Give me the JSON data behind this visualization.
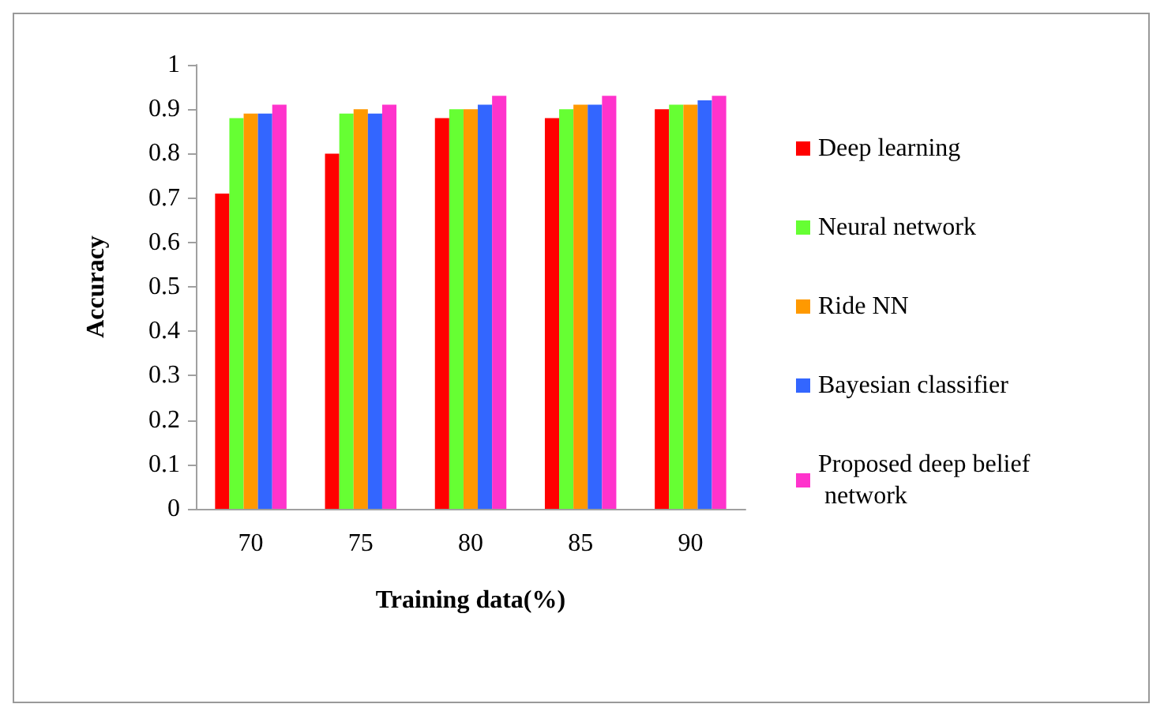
{
  "chart_data": {
    "type": "bar",
    "xlabel": "Training data(%)",
    "ylabel": "Accuracy",
    "categories": [
      "70",
      "75",
      "80",
      "85",
      "90"
    ],
    "series": [
      {
        "name": "Deep learning",
        "color": "#ff0000",
        "values": [
          0.71,
          0.8,
          0.88,
          0.88,
          0.9
        ]
      },
      {
        "name": "Neural network",
        "color": "#66ff33",
        "values": [
          0.88,
          0.89,
          0.9,
          0.9,
          0.91
        ]
      },
      {
        "name": "Ride NN",
        "color": "#ff9900",
        "values": [
          0.89,
          0.9,
          0.9,
          0.91,
          0.91
        ]
      },
      {
        "name": "Bayesian classifier",
        "color": "#3366ff",
        "values": [
          0.89,
          0.89,
          0.91,
          0.91,
          0.92
        ]
      },
      {
        "name": "Proposed deep belief network",
        "color": "#ff33cc",
        "values": [
          0.91,
          0.91,
          0.93,
          0.93,
          0.93
        ]
      }
    ],
    "ylim": [
      0,
      1
    ],
    "yticks": [
      0,
      0.1,
      0.2,
      0.3,
      0.4,
      0.5,
      0.6,
      0.7,
      0.8,
      0.9,
      1
    ],
    "grid": false,
    "legend": "right"
  }
}
